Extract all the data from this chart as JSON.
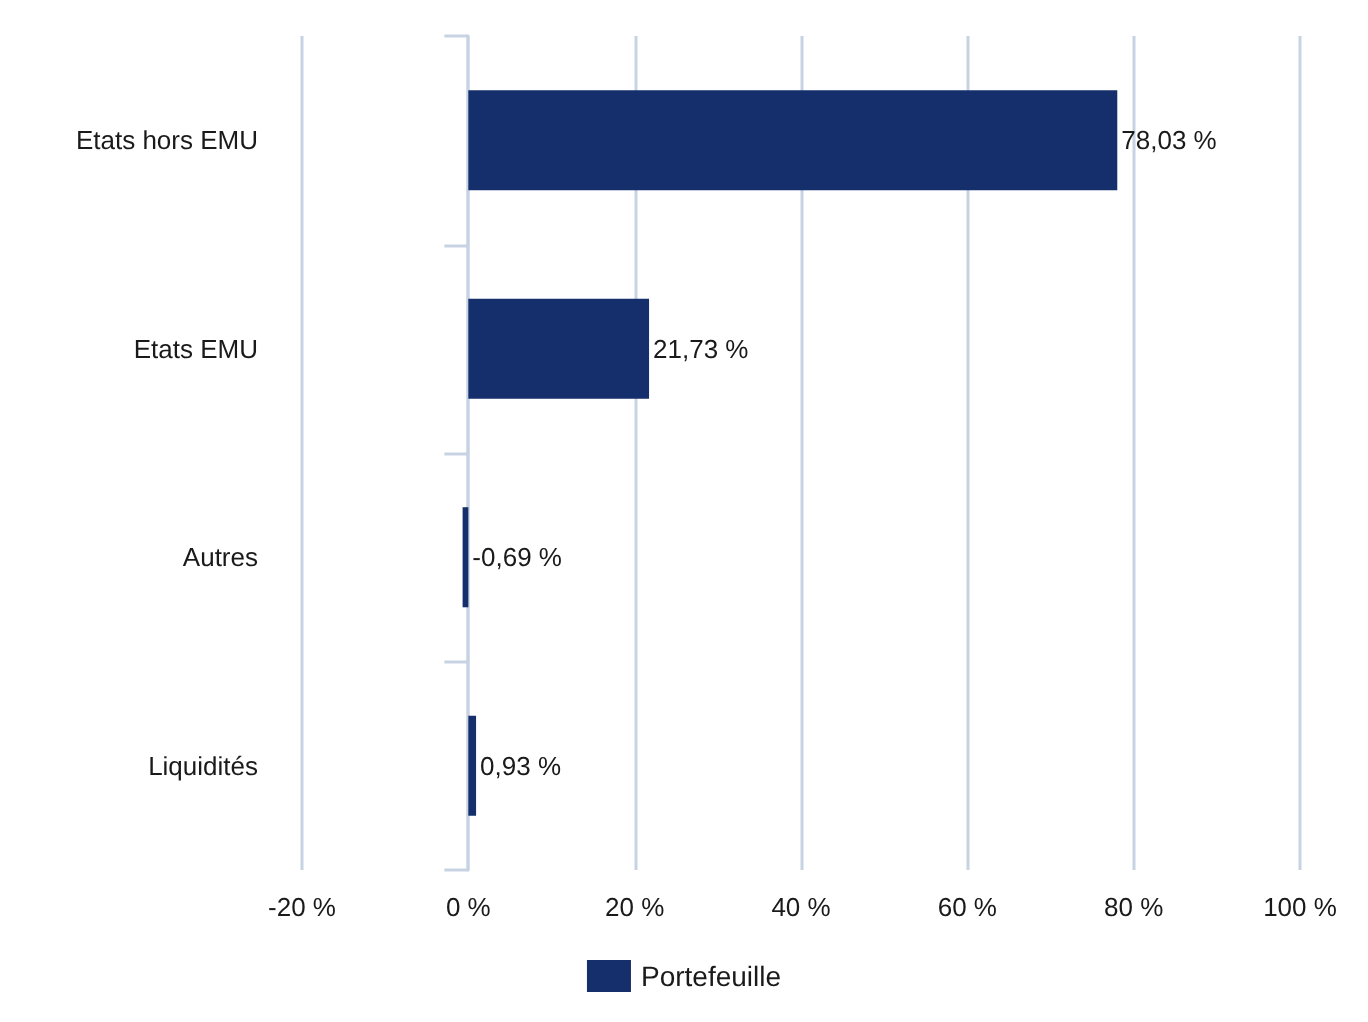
{
  "chart_data": {
    "type": "bar",
    "orientation": "horizontal",
    "categories": [
      "Etats hors EMU",
      "Etats EMU",
      "Autres",
      "Liquidités"
    ],
    "series": [
      {
        "name": "Portefeuille",
        "color": "#142f6b",
        "values": [
          78.03,
          21.73,
          -0.69,
          0.93
        ],
        "value_labels": [
          "78,03 %",
          "21,73 %",
          "-0,69 %",
          "0,93 %"
        ]
      }
    ],
    "xlim": [
      -20,
      100
    ],
    "xticks": [
      {
        "value": -20,
        "label": "-20 %"
      },
      {
        "value": 0,
        "label": "0 %"
      },
      {
        "value": 20,
        "label": "20 %"
      },
      {
        "value": 40,
        "label": "40 %"
      },
      {
        "value": 60,
        "label": "60 %"
      },
      {
        "value": 80,
        "label": "80 %"
      },
      {
        "value": 100,
        "label": "100 %"
      }
    ],
    "grid": "x",
    "legend": "bottom"
  }
}
